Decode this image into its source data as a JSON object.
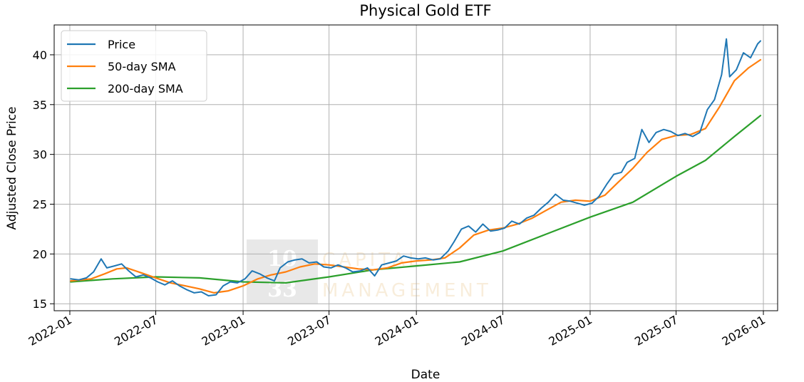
{
  "chart_data": {
    "type": "line",
    "title": "Physical Gold ETF",
    "xlabel": "Date",
    "ylabel": "Adjusted Close Price",
    "x_range": [
      "2021-11-29",
      "2026-01-31"
    ],
    "ylim": [
      14.3,
      43.0
    ],
    "x_ticks": [
      "2022-01",
      "2022-07",
      "2023-01",
      "2023-07",
      "2024-01",
      "2024-07",
      "2025-01",
      "2025-07",
      "2026-01"
    ],
    "y_ticks": [
      15,
      20,
      25,
      30,
      35,
      40
    ],
    "grid": true,
    "legend_position": "top-left",
    "watermark": {
      "number_top": "10",
      "number_bottom": "33",
      "text_top": "CAPITAL",
      "text_bottom": "MANAGEMENT"
    },
    "series": [
      {
        "name": "Price",
        "color": "#1f77b4",
        "points": [
          [
            "2022-01-03",
            17.5
          ],
          [
            "2022-01-20",
            17.4
          ],
          [
            "2022-02-05",
            17.6
          ],
          [
            "2022-02-20",
            18.2
          ],
          [
            "2022-03-08",
            19.5
          ],
          [
            "2022-03-20",
            18.6
          ],
          [
            "2022-04-05",
            18.8
          ],
          [
            "2022-04-20",
            19.0
          ],
          [
            "2022-05-05",
            18.3
          ],
          [
            "2022-05-20",
            17.7
          ],
          [
            "2022-06-05",
            17.9
          ],
          [
            "2022-06-20",
            17.6
          ],
          [
            "2022-07-05",
            17.2
          ],
          [
            "2022-07-20",
            16.9
          ],
          [
            "2022-08-05",
            17.3
          ],
          [
            "2022-08-20",
            16.8
          ],
          [
            "2022-09-05",
            16.4
          ],
          [
            "2022-09-20",
            16.1
          ],
          [
            "2022-10-05",
            16.2
          ],
          [
            "2022-10-20",
            15.8
          ],
          [
            "2022-11-05",
            15.9
          ],
          [
            "2022-11-20",
            16.8
          ],
          [
            "2022-12-05",
            17.2
          ],
          [
            "2022-12-20",
            17.1
          ],
          [
            "2023-01-05",
            17.5
          ],
          [
            "2023-01-20",
            18.3
          ],
          [
            "2023-02-05",
            18.0
          ],
          [
            "2023-02-20",
            17.6
          ],
          [
            "2023-03-08",
            17.3
          ],
          [
            "2023-03-20",
            18.6
          ],
          [
            "2023-04-05",
            19.2
          ],
          [
            "2023-04-20",
            19.4
          ],
          [
            "2023-05-05",
            19.5
          ],
          [
            "2023-05-20",
            19.1
          ],
          [
            "2023-06-05",
            19.2
          ],
          [
            "2023-06-20",
            18.7
          ],
          [
            "2023-07-05",
            18.6
          ],
          [
            "2023-07-20",
            18.9
          ],
          [
            "2023-08-05",
            18.6
          ],
          [
            "2023-08-20",
            18.2
          ],
          [
            "2023-09-05",
            18.3
          ],
          [
            "2023-09-20",
            18.6
          ],
          [
            "2023-10-05",
            17.8
          ],
          [
            "2023-10-20",
            18.9
          ],
          [
            "2023-11-05",
            19.1
          ],
          [
            "2023-11-20",
            19.3
          ],
          [
            "2023-12-05",
            19.8
          ],
          [
            "2023-12-20",
            19.6
          ],
          [
            "2024-01-05",
            19.5
          ],
          [
            "2024-01-20",
            19.6
          ],
          [
            "2024-02-05",
            19.4
          ],
          [
            "2024-02-20",
            19.5
          ],
          [
            "2024-03-08",
            20.3
          ],
          [
            "2024-03-20",
            21.2
          ],
          [
            "2024-04-05",
            22.5
          ],
          [
            "2024-04-20",
            22.8
          ],
          [
            "2024-05-05",
            22.2
          ],
          [
            "2024-05-20",
            23.0
          ],
          [
            "2024-06-05",
            22.3
          ],
          [
            "2024-06-20",
            22.4
          ],
          [
            "2024-07-05",
            22.6
          ],
          [
            "2024-07-20",
            23.3
          ],
          [
            "2024-08-05",
            23.0
          ],
          [
            "2024-08-20",
            23.6
          ],
          [
            "2024-09-05",
            23.9
          ],
          [
            "2024-09-20",
            24.6
          ],
          [
            "2024-10-05",
            25.2
          ],
          [
            "2024-10-20",
            26.0
          ],
          [
            "2024-11-05",
            25.4
          ],
          [
            "2024-11-20",
            25.3
          ],
          [
            "2024-12-05",
            25.1
          ],
          [
            "2024-12-20",
            24.9
          ],
          [
            "2025-01-05",
            25.1
          ],
          [
            "2025-01-20",
            25.8
          ],
          [
            "2025-02-05",
            27.0
          ],
          [
            "2025-02-20",
            28.0
          ],
          [
            "2025-03-08",
            28.2
          ],
          [
            "2025-03-20",
            29.2
          ],
          [
            "2025-04-05",
            29.6
          ],
          [
            "2025-04-20",
            32.5
          ],
          [
            "2025-05-05",
            31.2
          ],
          [
            "2025-05-20",
            32.2
          ],
          [
            "2025-06-05",
            32.5
          ],
          [
            "2025-06-20",
            32.3
          ],
          [
            "2025-07-05",
            31.9
          ],
          [
            "2025-07-20",
            32.1
          ],
          [
            "2025-08-05",
            31.8
          ],
          [
            "2025-08-20",
            32.2
          ],
          [
            "2025-09-05",
            34.5
          ],
          [
            "2025-09-20",
            35.5
          ],
          [
            "2025-10-05",
            38.0
          ],
          [
            "2025-10-15",
            41.6
          ],
          [
            "2025-10-22",
            37.8
          ],
          [
            "2025-11-05",
            38.5
          ],
          [
            "2025-11-20",
            40.2
          ],
          [
            "2025-12-05",
            39.7
          ],
          [
            "2025-12-20",
            41.1
          ],
          [
            "2025-12-26",
            41.4
          ]
        ]
      },
      {
        "name": "50-day SMA",
        "color": "#ff7f0e",
        "points": [
          [
            "2022-01-03",
            17.3
          ],
          [
            "2022-02-15",
            17.5
          ],
          [
            "2022-03-15",
            18.0
          ],
          [
            "2022-04-10",
            18.5
          ],
          [
            "2022-05-01",
            18.6
          ],
          [
            "2022-06-01",
            18.1
          ],
          [
            "2022-07-01",
            17.6
          ],
          [
            "2022-08-01",
            17.1
          ],
          [
            "2022-09-01",
            16.8
          ],
          [
            "2022-10-01",
            16.5
          ],
          [
            "2022-11-01",
            16.1
          ],
          [
            "2022-12-01",
            16.3
          ],
          [
            "2023-01-01",
            16.8
          ],
          [
            "2023-02-01",
            17.5
          ],
          [
            "2023-03-01",
            17.9
          ],
          [
            "2023-04-01",
            18.2
          ],
          [
            "2023-05-01",
            18.7
          ],
          [
            "2023-06-01",
            19.0
          ],
          [
            "2023-07-01",
            18.9
          ],
          [
            "2023-08-01",
            18.7
          ],
          [
            "2023-09-01",
            18.5
          ],
          [
            "2023-10-01",
            18.4
          ],
          [
            "2023-11-01",
            18.6
          ],
          [
            "2023-12-01",
            19.1
          ],
          [
            "2024-01-01",
            19.3
          ],
          [
            "2024-02-01",
            19.4
          ],
          [
            "2024-03-01",
            19.6
          ],
          [
            "2024-04-01",
            20.6
          ],
          [
            "2024-05-01",
            21.9
          ],
          [
            "2024-06-01",
            22.4
          ],
          [
            "2024-07-01",
            22.6
          ],
          [
            "2024-08-01",
            23.0
          ],
          [
            "2024-09-01",
            23.6
          ],
          [
            "2024-10-01",
            24.4
          ],
          [
            "2024-11-01",
            25.2
          ],
          [
            "2024-12-01",
            25.4
          ],
          [
            "2025-01-01",
            25.3
          ],
          [
            "2025-02-01",
            25.9
          ],
          [
            "2025-03-01",
            27.2
          ],
          [
            "2025-04-01",
            28.6
          ],
          [
            "2025-05-01",
            30.2
          ],
          [
            "2025-06-01",
            31.5
          ],
          [
            "2025-07-01",
            31.9
          ],
          [
            "2025-08-01",
            32.0
          ],
          [
            "2025-09-01",
            32.6
          ],
          [
            "2025-10-01",
            34.8
          ],
          [
            "2025-11-01",
            37.4
          ],
          [
            "2025-12-01",
            38.7
          ],
          [
            "2025-12-26",
            39.5
          ]
        ]
      },
      {
        "name": "200-day SMA",
        "color": "#2ca02c",
        "points": [
          [
            "2022-01-03",
            17.2
          ],
          [
            "2022-04-01",
            17.5
          ],
          [
            "2022-07-01",
            17.7
          ],
          [
            "2022-10-01",
            17.6
          ],
          [
            "2023-01-01",
            17.2
          ],
          [
            "2023-04-01",
            17.1
          ],
          [
            "2023-07-01",
            17.7
          ],
          [
            "2023-10-01",
            18.4
          ],
          [
            "2024-01-01",
            18.8
          ],
          [
            "2024-04-01",
            19.2
          ],
          [
            "2024-07-01",
            20.3
          ],
          [
            "2024-10-01",
            22.0
          ],
          [
            "2025-01-01",
            23.7
          ],
          [
            "2025-04-01",
            25.2
          ],
          [
            "2025-07-01",
            27.8
          ],
          [
            "2025-09-01",
            29.4
          ],
          [
            "2025-11-01",
            31.8
          ],
          [
            "2025-12-26",
            33.9
          ]
        ]
      }
    ]
  }
}
